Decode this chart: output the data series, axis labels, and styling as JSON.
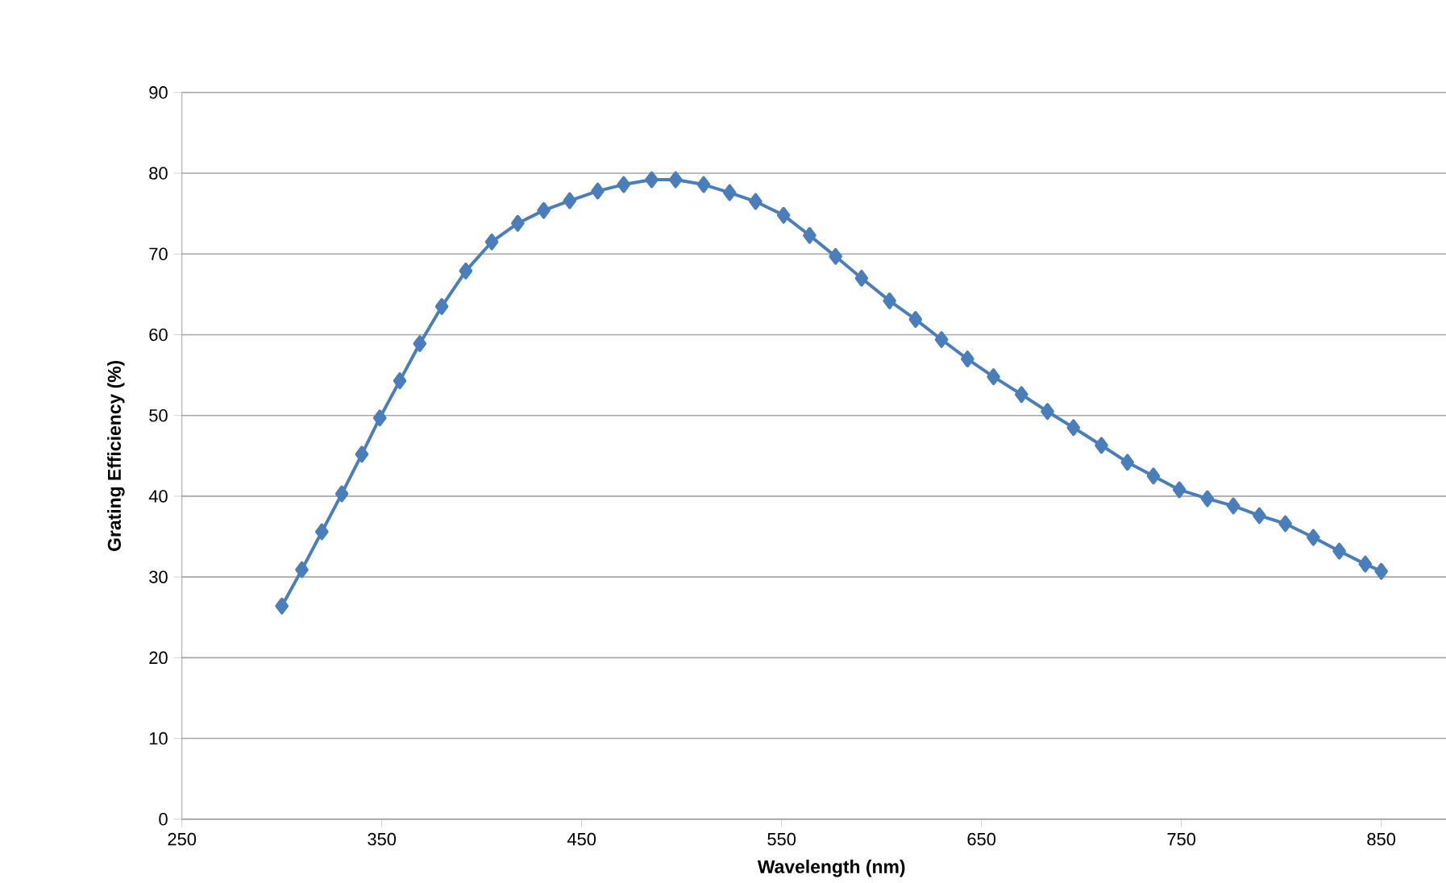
{
  "chart_data": {
    "type": "line",
    "xlabel": "Wavelength (nm)",
    "ylabel": "Grating Efficiency (%)",
    "x": [
      300,
      310,
      320,
      330,
      340,
      349,
      359,
      369,
      380,
      392,
      405,
      418,
      431,
      444,
      458,
      471,
      485,
      497,
      511,
      524,
      537,
      551,
      564,
      577,
      590,
      604,
      617,
      630,
      643,
      656,
      670,
      683,
      696,
      710,
      723,
      736,
      749,
      763,
      776,
      789,
      802,
      816,
      829,
      842,
      850
    ],
    "series": [
      {
        "color": "#4a7ebb",
        "values": [
          26.4,
          30.9,
          35.6,
          40.3,
          45.2,
          49.7,
          54.3,
          58.9,
          63.5,
          67.9,
          71.5,
          73.8,
          75.4,
          76.6,
          77.8,
          78.6,
          79.2,
          79.2,
          78.6,
          77.6,
          76.5,
          74.8,
          72.3,
          69.7,
          67.0,
          64.2,
          61.9,
          59.4,
          57.0,
          54.8,
          52.6,
          50.5,
          48.5,
          46.3,
          44.2,
          42.5,
          40.8,
          39.7,
          38.8,
          37.6,
          36.6,
          34.9,
          33.2,
          31.6,
          30.7
        ]
      }
    ],
    "xlim": [
      250,
      900
    ],
    "ylim": [
      0,
      90
    ],
    "xticks": [
      250,
      350,
      450,
      550,
      650,
      750,
      850
    ],
    "yticks": [
      0,
      10,
      20,
      30,
      40,
      50,
      60,
      70,
      80,
      90
    ],
    "grid": "y",
    "marker": "diamond",
    "line_style": "solid"
  }
}
